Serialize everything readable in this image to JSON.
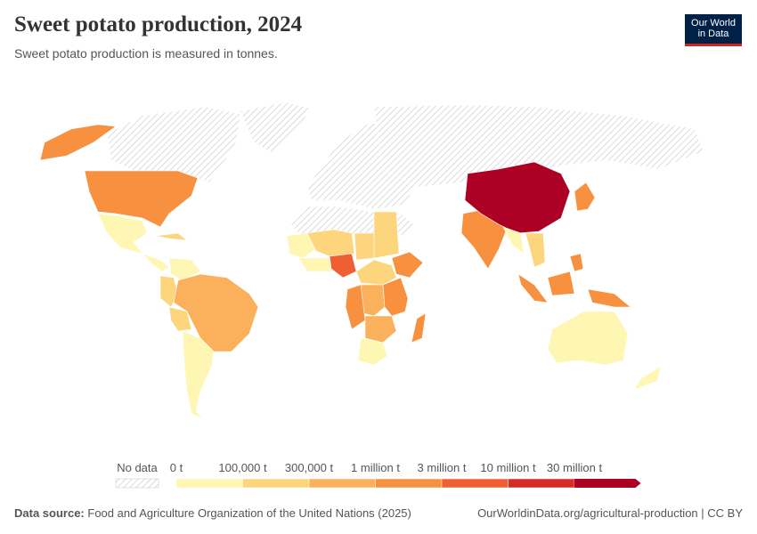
{
  "header": {
    "title": "Sweet potato production, 2024",
    "subtitle": "Sweet potato production is measured in tonnes.",
    "logo": [
      "Our World",
      "in Data"
    ]
  },
  "legend": {
    "no_data": "No data",
    "labels": [
      "0 t",
      "100,000 t",
      "300,000 t",
      "1 million t",
      "3 million t",
      "10 million t",
      "30 million t"
    ],
    "colors": [
      "#fef6b3",
      "#fdd57c",
      "#fbb15b",
      "#f7903f",
      "#f05f34",
      "#da2a26",
      "#ad0025"
    ]
  },
  "footer": {
    "source_label": "Data source:",
    "source": "Food and Agriculture Organization of the United Nations (2025)",
    "link": "OurWorldinData.org/agricultural-production | CC BY"
  }
}
